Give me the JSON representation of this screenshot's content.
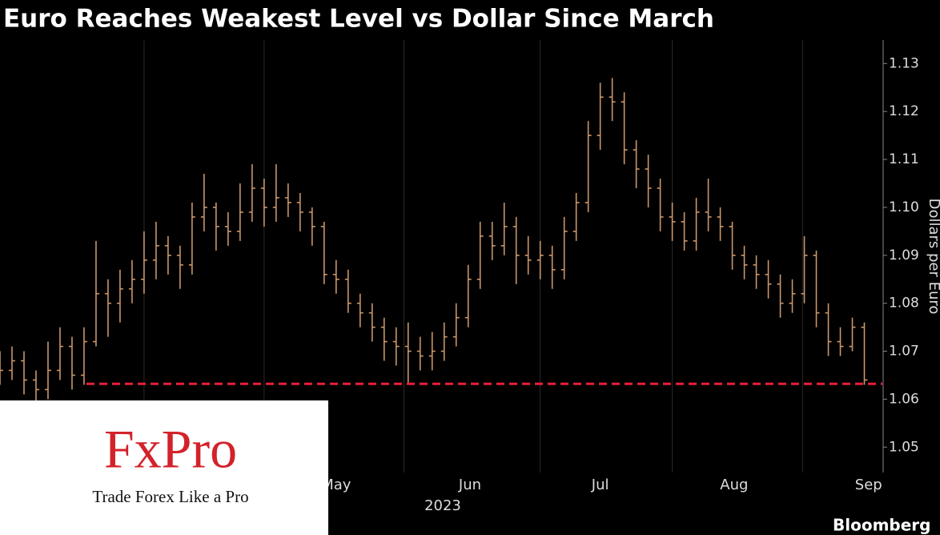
{
  "chart_data": {
    "type": "ohlc",
    "title": "Euro Reaches Weakest Level vs Dollar Since March",
    "y_label": "Dollars per Euro",
    "source": "Bloomberg",
    "x_sub_label": "2023",
    "color": "#c9966c",
    "x": [
      0,
      2,
      4,
      6,
      8,
      10,
      12,
      14,
      16,
      18,
      20,
      22,
      24,
      26,
      28,
      30,
      32,
      34,
      36,
      38,
      40,
      42,
      44,
      46,
      48,
      50,
      52,
      54,
      56,
      58,
      60,
      62,
      64,
      66,
      68,
      70,
      72,
      74,
      76,
      78,
      80,
      82,
      84,
      86,
      88,
      90,
      92,
      94,
      96,
      98,
      100,
      102,
      104,
      106,
      108,
      110,
      112,
      114,
      116,
      118,
      120,
      122,
      124,
      126,
      128,
      130,
      132,
      134,
      136,
      138,
      140,
      142,
      144
    ],
    "open": [
      1.068,
      1.066,
      1.068,
      1.064,
      1.062,
      1.066,
      1.071,
      1.065,
      1.072,
      1.082,
      1.08,
      1.083,
      1.085,
      1.089,
      1.092,
      1.09,
      1.088,
      1.098,
      1.1,
      1.096,
      1.095,
      1.099,
      1.104,
      1.1,
      1.102,
      1.101,
      1.099,
      1.096,
      1.086,
      1.085,
      1.08,
      1.078,
      1.075,
      1.072,
      1.071,
      1.07,
      1.069,
      1.07,
      1.073,
      1.077,
      1.085,
      1.094,
      1.092,
      1.096,
      1.09,
      1.089,
      1.09,
      1.087,
      1.095,
      1.101,
      1.115,
      1.123,
      1.122,
      1.112,
      1.108,
      1.104,
      1.098,
      1.097,
      1.093,
      1.099,
      1.098,
      1.096,
      1.09,
      1.088,
      1.086,
      1.084,
      1.08,
      1.082,
      1.09,
      1.078,
      1.072,
      1.071,
      1.075
    ],
    "high": [
      1.07,
      1.071,
      1.07,
      1.066,
      1.072,
      1.075,
      1.073,
      1.075,
      1.093,
      1.085,
      1.087,
      1.089,
      1.095,
      1.097,
      1.094,
      1.092,
      1.101,
      1.107,
      1.101,
      1.099,
      1.105,
      1.109,
      1.106,
      1.109,
      1.105,
      1.103,
      1.1,
      1.097,
      1.089,
      1.087,
      1.082,
      1.08,
      1.077,
      1.075,
      1.076,
      1.073,
      1.074,
      1.076,
      1.08,
      1.088,
      1.097,
      1.097,
      1.101,
      1.098,
      1.094,
      1.093,
      1.092,
      1.098,
      1.103,
      1.118,
      1.126,
      1.127,
      1.124,
      1.114,
      1.111,
      1.106,
      1.101,
      1.099,
      1.102,
      1.106,
      1.1,
      1.097,
      1.092,
      1.09,
      1.089,
      1.086,
      1.085,
      1.094,
      1.091,
      1.08,
      1.075,
      1.077,
      1.076
    ],
    "low": [
      1.063,
      1.064,
      1.061,
      1.059,
      1.06,
      1.064,
      1.062,
      1.063,
      1.071,
      1.073,
      1.076,
      1.08,
      1.082,
      1.085,
      1.086,
      1.083,
      1.086,
      1.095,
      1.091,
      1.092,
      1.093,
      1.097,
      1.096,
      1.097,
      1.098,
      1.095,
      1.092,
      1.084,
      1.082,
      1.078,
      1.075,
      1.072,
      1.068,
      1.067,
      1.063,
      1.066,
      1.066,
      1.068,
      1.071,
      1.075,
      1.083,
      1.089,
      1.09,
      1.084,
      1.086,
      1.085,
      1.083,
      1.085,
      1.093,
      1.099,
      1.112,
      1.118,
      1.109,
      1.104,
      1.1,
      1.095,
      1.093,
      1.091,
      1.091,
      1.095,
      1.093,
      1.087,
      1.085,
      1.083,
      1.081,
      1.077,
      1.078,
      1.08,
      1.075,
      1.069,
      1.069,
      1.07,
      1.063
    ],
    "close": [
      1.066,
      1.068,
      1.064,
      1.062,
      1.066,
      1.071,
      1.065,
      1.072,
      1.082,
      1.08,
      1.083,
      1.085,
      1.089,
      1.092,
      1.09,
      1.088,
      1.098,
      1.1,
      1.096,
      1.095,
      1.099,
      1.104,
      1.1,
      1.102,
      1.101,
      1.099,
      1.096,
      1.086,
      1.085,
      1.08,
      1.078,
      1.075,
      1.072,
      1.071,
      1.07,
      1.069,
      1.07,
      1.073,
      1.077,
      1.085,
      1.094,
      1.092,
      1.096,
      1.09,
      1.089,
      1.09,
      1.087,
      1.095,
      1.101,
      1.115,
      1.123,
      1.122,
      1.112,
      1.108,
      1.104,
      1.098,
      1.097,
      1.093,
      1.099,
      1.098,
      1.096,
      1.09,
      1.088,
      1.086,
      1.084,
      1.08,
      1.082,
      1.09,
      1.078,
      1.072,
      1.071,
      1.075,
      1.064
    ],
    "hline": {
      "value": 1.0632,
      "from_x": 14.4,
      "color": "#e8203c"
    },
    "xlim": [
      0,
      147
    ],
    "ylim": [
      1.0447,
      1.1349
    ],
    "xticks": [
      {
        "value": 56,
        "label": "May"
      },
      {
        "value": 78.3,
        "label": "Jun"
      },
      {
        "value": 100,
        "label": "Jul"
      },
      {
        "value": 122.3,
        "label": "Aug"
      },
      {
        "value": 144.7,
        "label": "Sep"
      }
    ],
    "xgrid": [
      24,
      44,
      67.3,
      90,
      112,
      133.7
    ],
    "yticks": [
      1.05,
      1.06,
      1.07,
      1.08,
      1.09,
      {
        "value": 1.1,
        "label": "1.10"
      },
      1.11,
      1.12,
      1.13
    ],
    "grid": true
  },
  "logo": {
    "brand": "FxPro",
    "tagline": "Trade Forex Like a Pro"
  }
}
